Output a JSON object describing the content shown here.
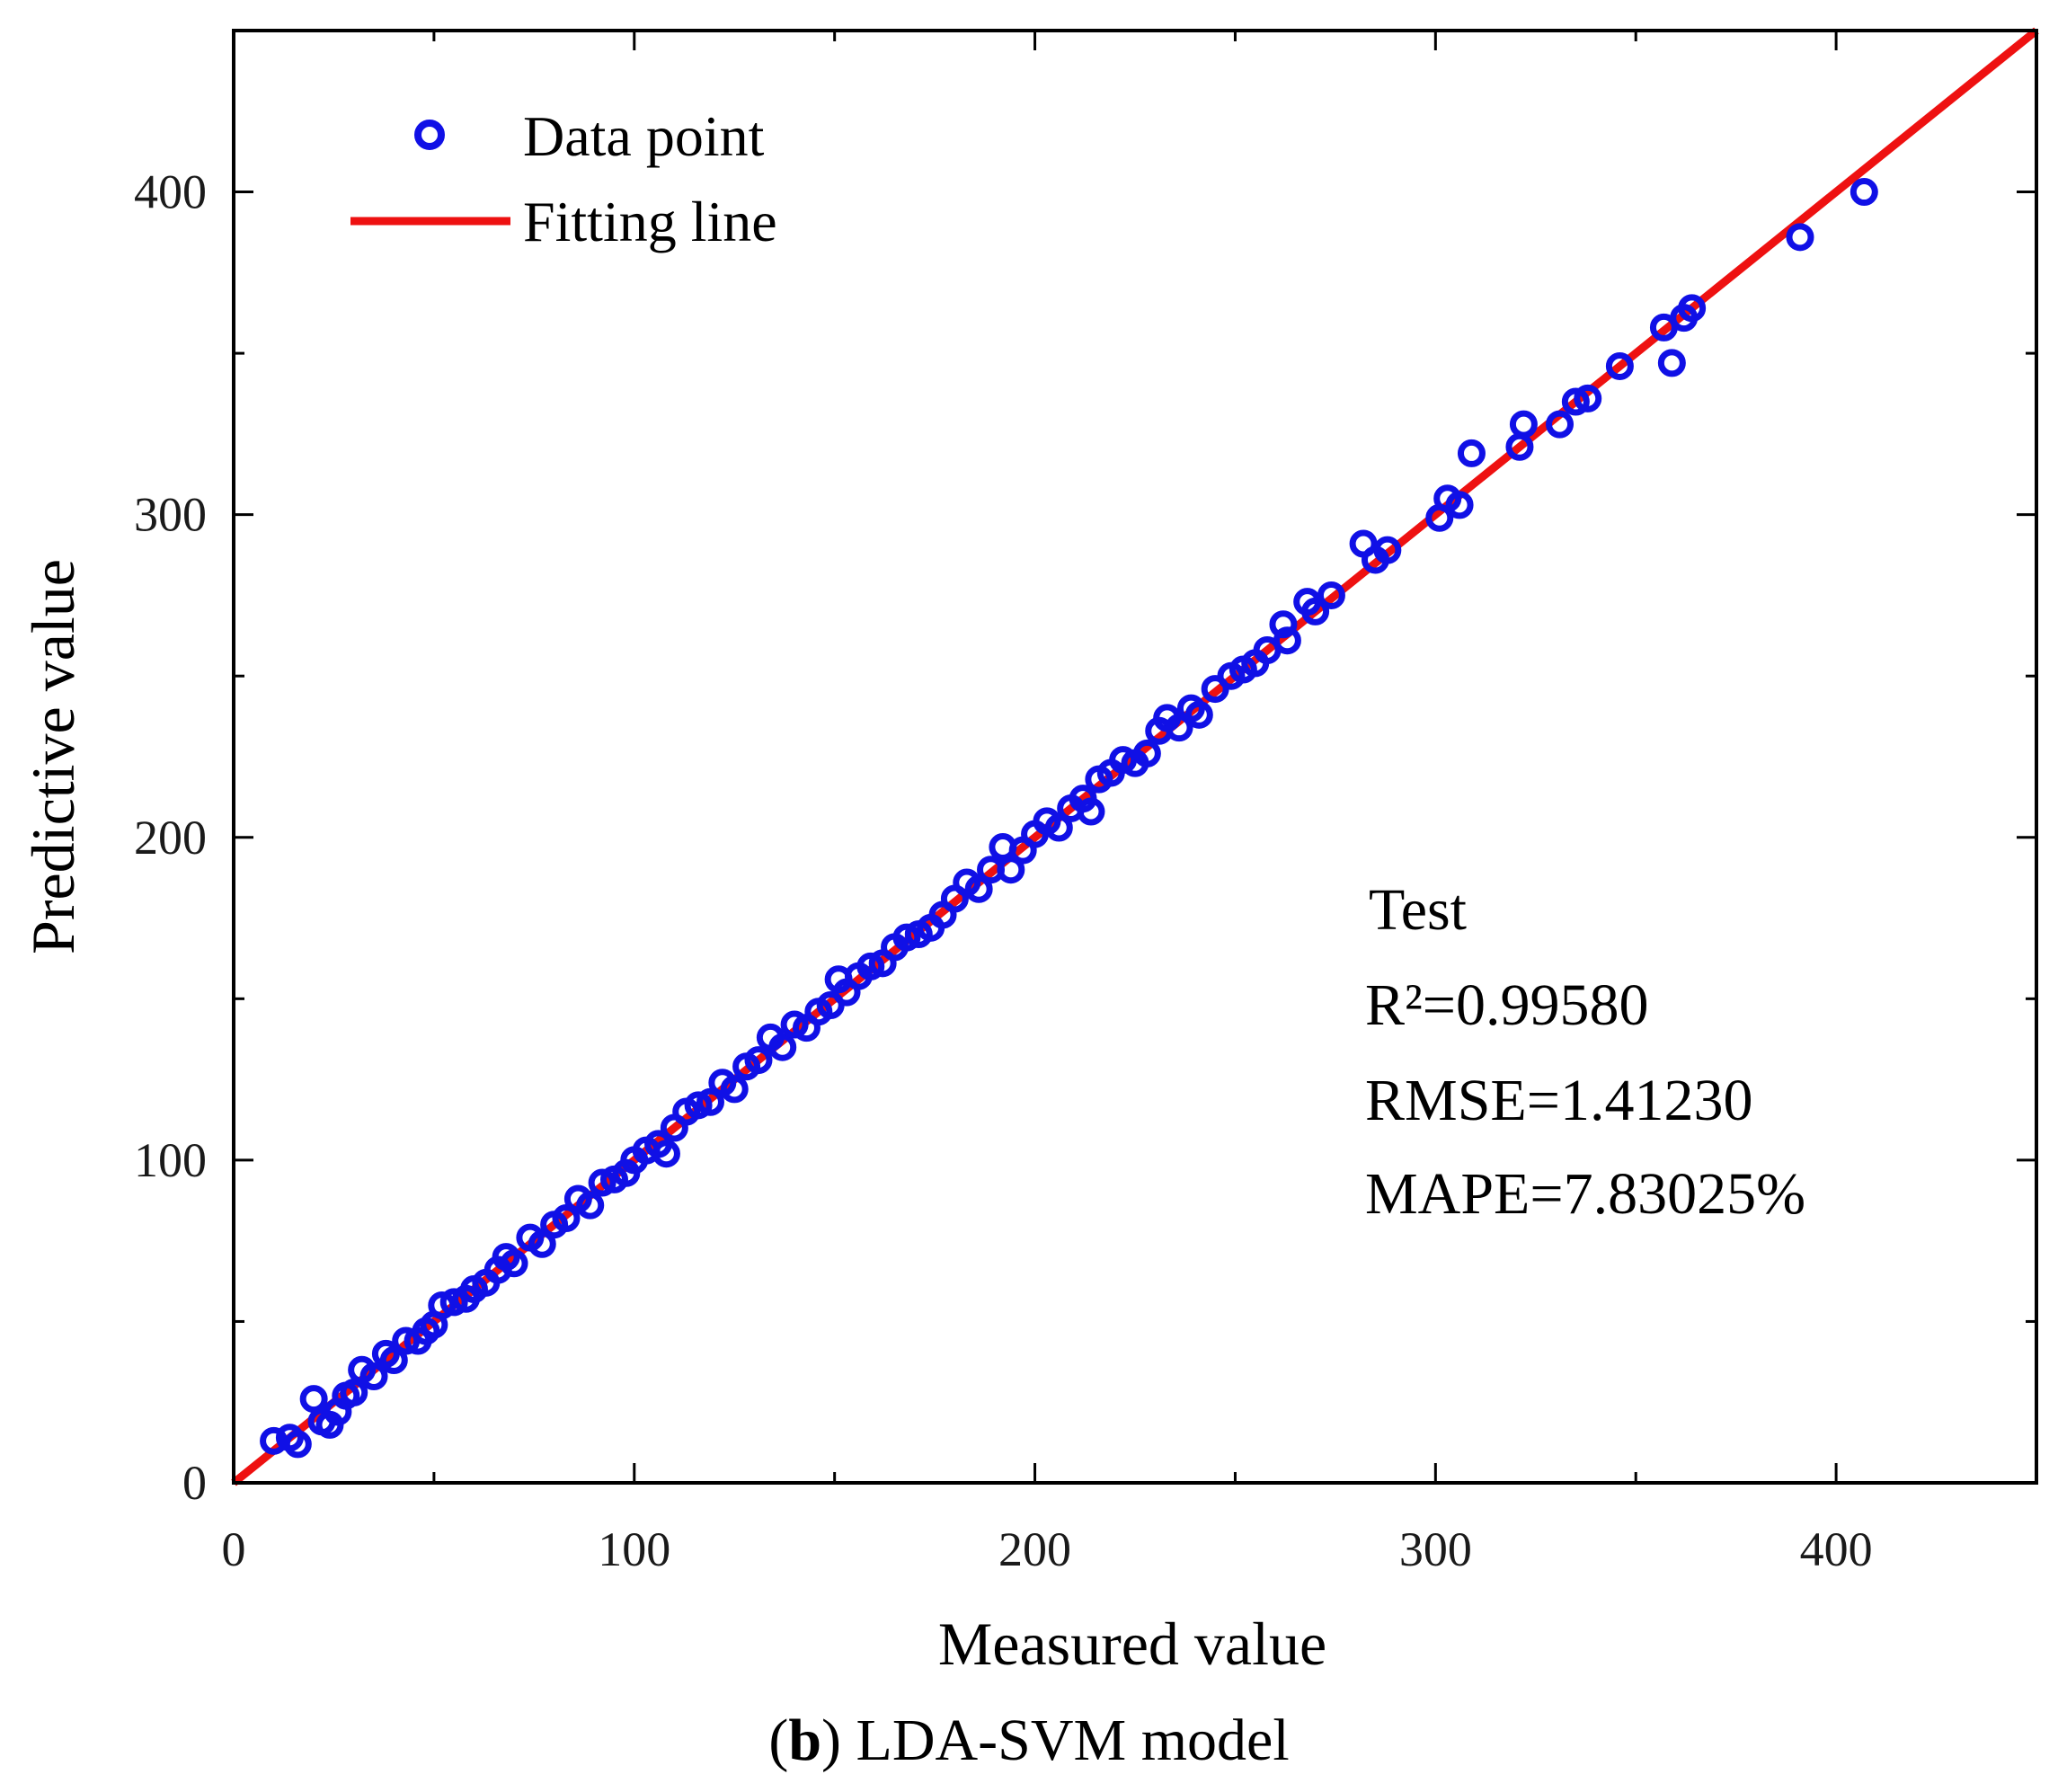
{
  "chart_data": {
    "type": "scatter",
    "title": "",
    "xlabel": "Measured value",
    "ylabel": "Predictive value",
    "xlim": [
      0,
      450
    ],
    "ylim": [
      0,
      450
    ],
    "xticks": [
      0,
      100,
      200,
      300,
      400
    ],
    "yticks": [
      0,
      100,
      200,
      300,
      400
    ],
    "xtick_labels": [
      "0",
      "100",
      "200",
      "300",
      "400"
    ],
    "ytick_labels": [
      "0",
      "100",
      "200",
      "300",
      "400"
    ],
    "grid": false,
    "legend": {
      "position": "top-left",
      "entries": [
        {
          "label": "Data point",
          "marker": "circle",
          "color": "#1010e6"
        },
        {
          "label": "Fitting line",
          "marker": "line",
          "color": "#ee1111"
        }
      ]
    },
    "series": [
      {
        "name": "Data point",
        "kind": "scatter",
        "color": "#1010e6",
        "points": [
          [
            10,
            13
          ],
          [
            14,
            14
          ],
          [
            16,
            12
          ],
          [
            20,
            26
          ],
          [
            22,
            19
          ],
          [
            24,
            18
          ],
          [
            26,
            22
          ],
          [
            28,
            27
          ],
          [
            30,
            28
          ],
          [
            32,
            35
          ],
          [
            35,
            33
          ],
          [
            38,
            40
          ],
          [
            40,
            38
          ],
          [
            43,
            44
          ],
          [
            46,
            44
          ],
          [
            48,
            47
          ],
          [
            50,
            49
          ],
          [
            52,
            55
          ],
          [
            55,
            56
          ],
          [
            58,
            57
          ],
          [
            60,
            60
          ],
          [
            63,
            62
          ],
          [
            66,
            66
          ],
          [
            68,
            70
          ],
          [
            70,
            68
          ],
          [
            74,
            76
          ],
          [
            77,
            74
          ],
          [
            80,
            80
          ],
          [
            83,
            82
          ],
          [
            86,
            88
          ],
          [
            89,
            86
          ],
          [
            92,
            93
          ],
          [
            95,
            94
          ],
          [
            98,
            96
          ],
          [
            100,
            100
          ],
          [
            103,
            103
          ],
          [
            106,
            105
          ],
          [
            108,
            102
          ],
          [
            110,
            110
          ],
          [
            113,
            115
          ],
          [
            116,
            117
          ],
          [
            119,
            118
          ],
          [
            122,
            124
          ],
          [
            125,
            122
          ],
          [
            128,
            129
          ],
          [
            131,
            131
          ],
          [
            134,
            138
          ],
          [
            137,
            135
          ],
          [
            140,
            142
          ],
          [
            143,
            141
          ],
          [
            146,
            146
          ],
          [
            149,
            148
          ],
          [
            151,
            156
          ],
          [
            153,
            152
          ],
          [
            156,
            157
          ],
          [
            159,
            160
          ],
          [
            162,
            161
          ],
          [
            165,
            166
          ],
          [
            168,
            169
          ],
          [
            171,
            170
          ],
          [
            174,
            172
          ],
          [
            177,
            176
          ],
          [
            180,
            181
          ],
          [
            183,
            186
          ],
          [
            186,
            184
          ],
          [
            189,
            190
          ],
          [
            192,
            197
          ],
          [
            194,
            190
          ],
          [
            197,
            196
          ],
          [
            200,
            201
          ],
          [
            203,
            205
          ],
          [
            206,
            203
          ],
          [
            209,
            209
          ],
          [
            212,
            212
          ],
          [
            214,
            208
          ],
          [
            216,
            218
          ],
          [
            219,
            220
          ],
          [
            222,
            224
          ],
          [
            225,
            223
          ],
          [
            228,
            226
          ],
          [
            231,
            233
          ],
          [
            233,
            237
          ],
          [
            236,
            234
          ],
          [
            239,
            240
          ],
          [
            241,
            238
          ],
          [
            245,
            246
          ],
          [
            249,
            250
          ],
          [
            252,
            252
          ],
          [
            255,
            254
          ],
          [
            258,
            258
          ],
          [
            262,
            266
          ],
          [
            263,
            261
          ],
          [
            268,
            273
          ],
          [
            270,
            270
          ],
          [
            274,
            275
          ],
          [
            282,
            291
          ],
          [
            285,
            286
          ],
          [
            288,
            289
          ],
          [
            301,
            299
          ],
          [
            303,
            305
          ],
          [
            306,
            303
          ],
          [
            309,
            319
          ],
          [
            321,
            321
          ],
          [
            322,
            328
          ],
          [
            331,
            328
          ],
          [
            335,
            335
          ],
          [
            338,
            336
          ],
          [
            346,
            346
          ],
          [
            357,
            358
          ],
          [
            359,
            347
          ],
          [
            362,
            361
          ],
          [
            364,
            364
          ],
          [
            391,
            386
          ],
          [
            407,
            400
          ]
        ]
      },
      {
        "name": "Fitting line",
        "kind": "line",
        "color": "#ee1111",
        "x": [
          0,
          450
        ],
        "y": [
          0,
          450
        ]
      }
    ],
    "annotation": {
      "lines": [
        "Test",
        "R²=0.99580",
        "RMSE=1.41230",
        "MAPE=7.83025%"
      ]
    }
  },
  "caption": {
    "letter": "b",
    "paren_open": "(",
    "paren_close": ")",
    "text": " LDA-SVM model"
  }
}
